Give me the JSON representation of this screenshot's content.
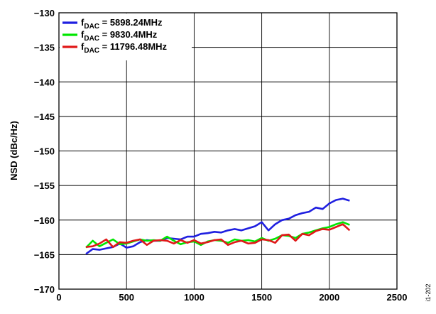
{
  "figure_id": "i1-202",
  "chart_data": {
    "type": "line",
    "xlabel": "",
    "ylabel": "NSD (dBc/Hz)",
    "xlim": [
      0,
      2500
    ],
    "ylim": [
      -170,
      -130
    ],
    "xticks": [
      0,
      500,
      1000,
      1500,
      2000,
      2500
    ],
    "yticks": [
      -130,
      -135,
      -140,
      -145,
      -150,
      -155,
      -160,
      -165,
      -170
    ],
    "ytick_labels": [
      "−130",
      "−135",
      "−140",
      "−145",
      "−150",
      "−155",
      "−160",
      "−165",
      "−170"
    ],
    "grid": true,
    "legend_position": "top-left",
    "series": [
      {
        "name_main": "f",
        "name_sub": "DAC",
        "name_rest": " = 5898.24MHz",
        "color": "#1f1fe0",
        "x": [
          200,
          250,
          300,
          350,
          400,
          450,
          500,
          550,
          600,
          650,
          700,
          750,
          800,
          850,
          900,
          950,
          1000,
          1050,
          1100,
          1150,
          1200,
          1250,
          1300,
          1350,
          1400,
          1450,
          1500,
          1550,
          1600,
          1650,
          1700,
          1750,
          1800,
          1850,
          1900,
          1950,
          2000,
          2050,
          2100,
          2150
        ],
        "values": [
          -164.9,
          -164.2,
          -164.3,
          -164.1,
          -163.9,
          -163.4,
          -164.0,
          -163.8,
          -163.2,
          -162.9,
          -163.0,
          -163.0,
          -162.6,
          -162.7,
          -162.8,
          -162.4,
          -162.4,
          -162.0,
          -161.9,
          -161.7,
          -161.8,
          -161.5,
          -161.3,
          -161.5,
          -161.2,
          -160.9,
          -160.3,
          -161.5,
          -160.6,
          -160.0,
          -159.8,
          -159.3,
          -159.0,
          -158.8,
          -158.2,
          -158.4,
          -157.6,
          -157.1,
          -156.9,
          -157.2
        ]
      },
      {
        "name_main": "f",
        "name_sub": "DAC",
        "name_rest": " = 9830.4MHz",
        "color": "#00e600",
        "x": [
          200,
          250,
          300,
          350,
          400,
          450,
          500,
          550,
          600,
          650,
          700,
          750,
          800,
          850,
          900,
          950,
          1000,
          1050,
          1100,
          1150,
          1200,
          1250,
          1300,
          1350,
          1400,
          1450,
          1500,
          1550,
          1600,
          1650,
          1700,
          1750,
          1800,
          1850,
          1900,
          1950,
          2000,
          2050,
          2100,
          2150
        ],
        "values": [
          -164.0,
          -163.0,
          -163.8,
          -163.3,
          -162.8,
          -163.5,
          -163.4,
          -163.1,
          -162.8,
          -163.0,
          -162.9,
          -163.0,
          -162.4,
          -163.0,
          -163.5,
          -163.2,
          -163.1,
          -163.6,
          -163.1,
          -162.9,
          -163.0,
          -163.3,
          -162.8,
          -163.0,
          -162.9,
          -163.1,
          -162.6,
          -163.0,
          -162.7,
          -162.2,
          -162.3,
          -162.6,
          -162.0,
          -161.8,
          -161.5,
          -161.2,
          -161.0,
          -160.6,
          -160.3,
          -160.7
        ]
      },
      {
        "name_main": "f",
        "name_sub": "DAC",
        "name_rest": " = 11796.48MHz",
        "color": "#e01818",
        "x": [
          200,
          250,
          300,
          350,
          400,
          450,
          500,
          550,
          600,
          650,
          700,
          750,
          800,
          850,
          900,
          950,
          1000,
          1050,
          1100,
          1150,
          1200,
          1250,
          1300,
          1350,
          1400,
          1450,
          1500,
          1550,
          1600,
          1650,
          1700,
          1750,
          1800,
          1850,
          1900,
          1950,
          2000,
          2050,
          2100,
          2150
        ],
        "values": [
          -163.9,
          -163.8,
          -163.4,
          -162.8,
          -163.9,
          -163.2,
          -163.3,
          -163.0,
          -162.8,
          -163.6,
          -163.0,
          -162.9,
          -163.0,
          -163.4,
          -162.9,
          -163.3,
          -162.9,
          -163.4,
          -163.2,
          -162.9,
          -162.8,
          -163.6,
          -163.2,
          -163.0,
          -163.4,
          -163.3,
          -162.8,
          -162.9,
          -163.3,
          -162.2,
          -162.1,
          -163.0,
          -162.0,
          -162.2,
          -161.6,
          -161.3,
          -161.4,
          -161.0,
          -160.6,
          -161.5
        ]
      }
    ]
  }
}
